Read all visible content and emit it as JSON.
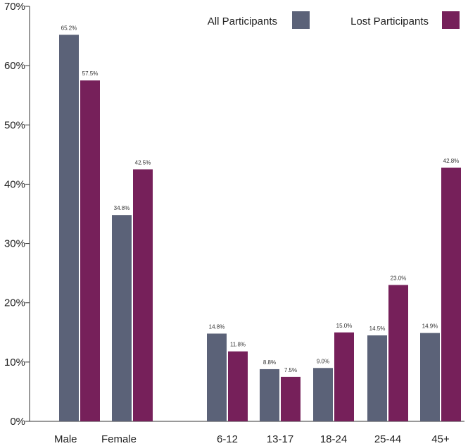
{
  "chart_data": {
    "type": "bar",
    "categories": [
      "Male",
      "Female",
      "6-12",
      "13-17",
      "18-24",
      "25-44",
      "45+"
    ],
    "series": [
      {
        "name": "All Participants",
        "color": "#5b6278",
        "values": [
          65.2,
          34.8,
          14.8,
          8.8,
          9.0,
          14.5,
          14.9
        ]
      },
      {
        "name": "Lost Participants",
        "color": "#76205a",
        "values": [
          57.5,
          42.5,
          11.8,
          7.5,
          15.0,
          23.0,
          42.8
        ]
      }
    ],
    "data_labels": [
      [
        "65.2%",
        "34.8%",
        "14.8%",
        "8.8%",
        "9.0%",
        "14.5%",
        "14.9%"
      ],
      [
        "57.5%",
        "42.5%",
        "11.8%",
        "7.5%",
        "15.0%",
        "23.0%",
        "42.8%"
      ]
    ],
    "yticks": [
      "0%",
      "10%",
      "20%",
      "30%",
      "40%",
      "50%",
      "60%",
      "70%"
    ],
    "ylim": [
      0,
      70
    ],
    "legend_position": "top-right",
    "grid": false
  }
}
